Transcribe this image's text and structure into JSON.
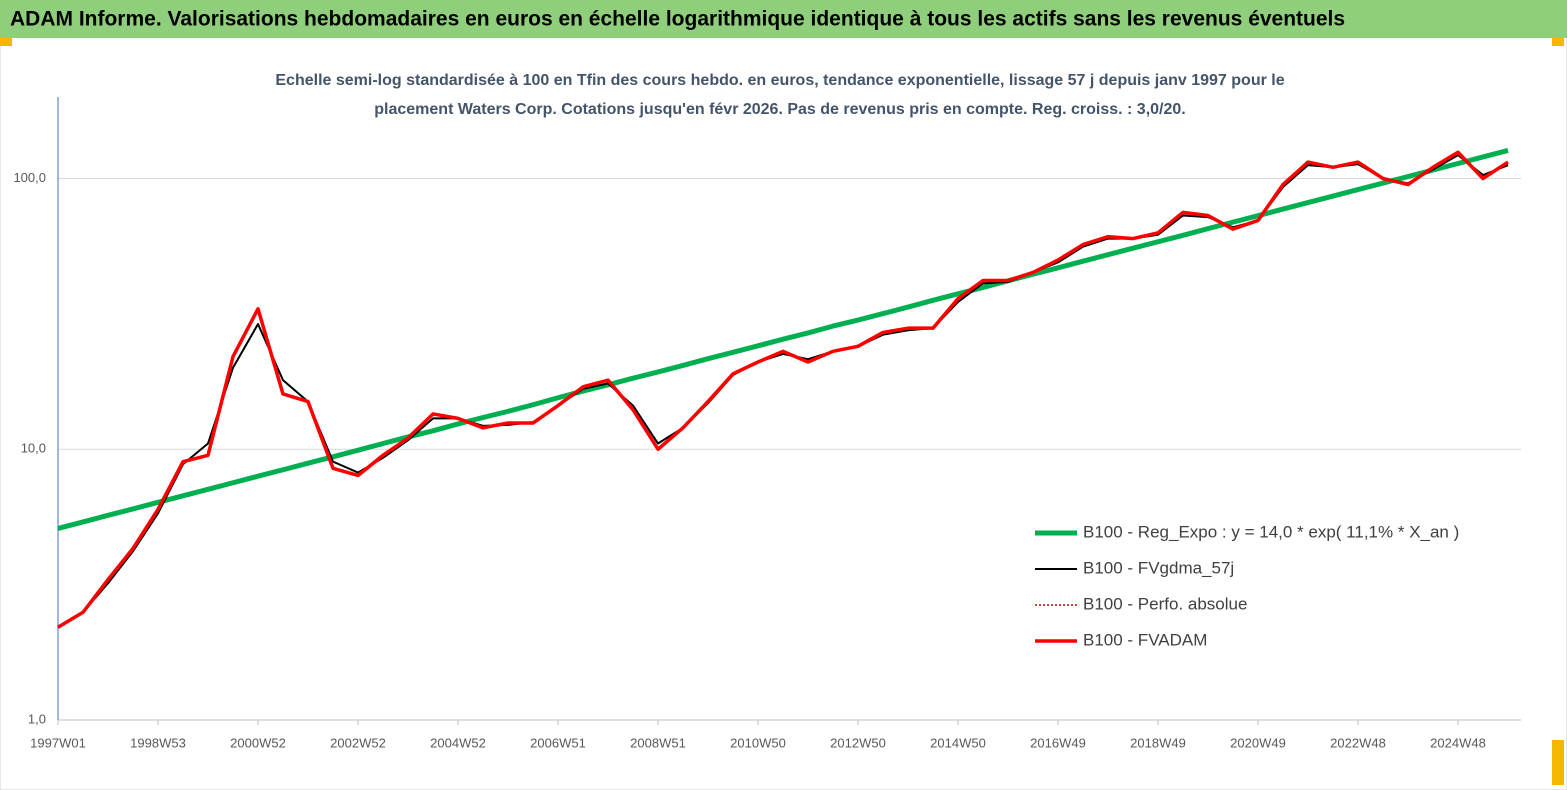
{
  "chart_data": {
    "type": "line",
    "title": "ADAM Informe. Valorisations hebdomadaires en euros en échelle logarithmique identique à tous les actifs sans les revenus éventuels",
    "subtitle": [
      "Echelle semi-log standardisée à 100 en Tfin des cours hebdo. en euros, tendance exponentielle, lissage 57 j depuis janv 1997 pour le",
      "placement Waters Corp. Cotations jusqu'en févr 2026.  Pas de revenus pris en  compte. Reg. croiss. : 3,0/20."
    ],
    "log_scale": true,
    "grid": true,
    "legend": "right",
    "ylim": [
      1,
      200
    ],
    "yticks": [
      {
        "value": 1,
        "label": "1,0"
      },
      {
        "value": 10,
        "label": "10,0"
      },
      {
        "value": 100,
        "label": "100,0"
      }
    ],
    "categories": [
      "1997W01",
      null,
      null,
      null,
      "1998W53",
      null,
      null,
      null,
      "2000W52",
      null,
      null,
      null,
      "2002W52",
      null,
      null,
      null,
      "2004W52",
      null,
      null,
      null,
      "2006W51",
      null,
      null,
      null,
      "2008W51",
      null,
      null,
      null,
      "2010W50",
      null,
      null,
      null,
      "2012W50",
      null,
      null,
      null,
      "2014W50",
      null,
      null,
      null,
      "2016W49",
      null,
      null,
      null,
      "2018W49",
      null,
      null,
      null,
      "2020W49",
      null,
      null,
      null,
      "2022W48",
      null,
      null,
      null,
      "2024W48",
      null,
      null
    ],
    "series": [
      {
        "name": "B100 - Reg_Expo : y = 14,0 * exp( 11,1% *  X_an )",
        "color": "#00b050",
        "width": 5,
        "values": [
          5.1,
          5.39,
          5.7,
          6.02,
          6.37,
          6.73,
          7.11,
          7.52,
          7.95,
          8.4,
          8.88,
          9.38,
          9.92,
          10.5,
          11.1,
          11.7,
          12.4,
          13.1,
          13.8,
          14.6,
          15.5,
          16.4,
          17.3,
          18.3,
          19.3,
          20.4,
          21.6,
          22.8,
          24.1,
          25.5,
          26.9,
          28.5,
          30.0,
          31.7,
          33.5,
          35.5,
          37.5,
          39.6,
          41.9,
          44.3,
          46.8,
          49.5,
          52.3,
          55.3,
          58.4,
          61.7,
          65.3,
          69.0,
          72.9,
          77.1,
          81.5,
          86.1,
          91.0,
          96.2,
          101.7,
          107.5,
          113.6,
          120.1,
          127.0
        ]
      },
      {
        "name": "B100 - FVgdma_57j",
        "color": "#000000",
        "width": 2,
        "values": [
          2.2,
          2.5,
          3.2,
          4.2,
          5.8,
          8.8,
          10.5,
          20,
          29,
          18,
          15,
          9,
          8.2,
          9.3,
          10.8,
          13,
          13,
          12.2,
          12.3,
          12.6,
          14.5,
          16.7,
          17.5,
          14.5,
          10.5,
          12,
          14.8,
          18.8,
          21,
          22.5,
          21.5,
          23,
          24,
          26.5,
          27.5,
          28,
          35,
          41,
          41.5,
          45,
          49,
          56,
          60,
          60,
          62,
          73,
          72,
          66,
          70,
          93,
          112,
          110,
          113,
          100,
          96,
          108,
          122,
          103,
          112
        ]
      },
      {
        "name": "B100 - Perfo. absolue",
        "color": "#c00000",
        "width": 1.5,
        "dash": true,
        "values": [
          2.2,
          2.5,
          3.3,
          4.3,
          6.0,
          9.0,
          9.5,
          22,
          33,
          16,
          15,
          8.5,
          8.0,
          9.5,
          11,
          13.5,
          13,
          12,
          12.5,
          12.5,
          14.5,
          17,
          18,
          14,
          10,
          12,
          15,
          19,
          21,
          23,
          21,
          23,
          24,
          27,
          28,
          28,
          36,
          42,
          42,
          45,
          50,
          57,
          61,
          60,
          63,
          75,
          73,
          65,
          70,
          95,
          115,
          110,
          115,
          100,
          95,
          110,
          125,
          100,
          115
        ]
      },
      {
        "name": "B100 - FVADAM",
        "color": "#ff0000",
        "width": 3.5,
        "values": [
          2.2,
          2.5,
          3.3,
          4.3,
          6.0,
          9.0,
          9.5,
          22,
          33,
          16,
          15,
          8.5,
          8.0,
          9.5,
          11,
          13.5,
          13,
          12,
          12.5,
          12.5,
          14.5,
          17,
          18,
          14,
          10,
          12,
          15,
          19,
          21,
          23,
          21,
          23,
          24,
          27,
          28,
          28,
          36,
          42,
          42,
          45,
          50,
          57,
          61,
          60,
          63,
          75,
          73,
          65,
          70,
          95,
          115,
          110,
          115,
          100,
          95,
          110,
          125,
          100,
          115
        ]
      }
    ]
  }
}
